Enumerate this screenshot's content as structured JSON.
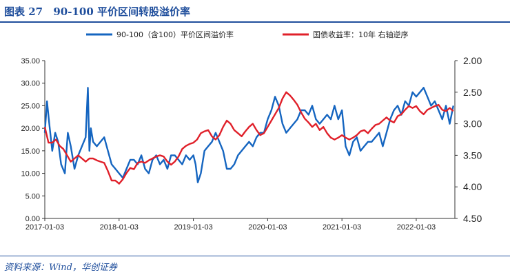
{
  "header": {
    "figure_label": "图表 27",
    "title": "90-100 平价区间转股溢价率"
  },
  "source": "资料来源：Wind，华创证券",
  "colors": {
    "premium": "#1565c0",
    "yield": "#e0202a",
    "accent": "#1f4e9c"
  },
  "chart_data": {
    "type": "line",
    "legend": [
      "90-100（含100）平价区间溢价率",
      "国债收益率：10年 右轴逆序"
    ],
    "x_tick_labels": [
      "2017-01-03",
      "2018-01-03",
      "2019-01-03",
      "2020-01-03",
      "2021-01-03",
      "2022-01-03"
    ],
    "left_axis": {
      "ylim": [
        0,
        35
      ],
      "ticks": [
        "0.00",
        "5.00",
        "10.00",
        "15.00",
        "20.00",
        "25.00",
        "30.00",
        "35.00"
      ]
    },
    "right_axis": {
      "ylim": [
        2.0,
        4.5
      ],
      "inverted": true,
      "ticks": [
        "2.00",
        "2.50",
        "3.00",
        "3.50",
        "4.00",
        "4.50"
      ]
    },
    "x_range": [
      2017.0,
      2022.52
    ],
    "series": [
      {
        "name": "90-100（含100）平价区间溢价率",
        "axis": "left",
        "x": [
          2017.0,
          2017.03,
          2017.06,
          2017.1,
          2017.14,
          2017.18,
          2017.22,
          2017.27,
          2017.31,
          2017.35,
          2017.4,
          2017.45,
          2017.5,
          2017.55,
          2017.58,
          2017.6,
          2017.62,
          2017.65,
          2017.7,
          2017.75,
          2017.8,
          2017.85,
          2017.9,
          2017.95,
          2018.0,
          2018.05,
          2018.1,
          2018.15,
          2018.2,
          2018.25,
          2018.3,
          2018.35,
          2018.4,
          2018.45,
          2018.5,
          2018.55,
          2018.6,
          2018.65,
          2018.7,
          2018.75,
          2018.8,
          2018.85,
          2018.9,
          2018.95,
          2019.0,
          2019.03,
          2019.06,
          2019.1,
          2019.15,
          2019.2,
          2019.25,
          2019.3,
          2019.35,
          2019.4,
          2019.45,
          2019.5,
          2019.55,
          2019.6,
          2019.65,
          2019.7,
          2019.75,
          2019.8,
          2019.85,
          2019.9,
          2019.95,
          2020.0,
          2020.05,
          2020.1,
          2020.15,
          2020.2,
          2020.25,
          2020.3,
          2020.35,
          2020.4,
          2020.45,
          2020.5,
          2020.55,
          2020.6,
          2020.65,
          2020.7,
          2020.75,
          2020.8,
          2020.85,
          2020.9,
          2020.95,
          2021.0,
          2021.05,
          2021.1,
          2021.15,
          2021.2,
          2021.25,
          2021.3,
          2021.35,
          2021.4,
          2021.45,
          2021.5,
          2021.55,
          2021.6,
          2021.65,
          2021.7,
          2021.75,
          2021.8,
          2021.85,
          2021.9,
          2021.95,
          2022.0,
          2022.05,
          2022.1,
          2022.15,
          2022.2,
          2022.25,
          2022.3,
          2022.35,
          2022.4,
          2022.45,
          2022.5
        ],
        "values": [
          19,
          26,
          21,
          15,
          19,
          17,
          12,
          10,
          19,
          16,
          11,
          14,
          16,
          18,
          29,
          15,
          20,
          17,
          16,
          17,
          18,
          15,
          12,
          11,
          10,
          9,
          11,
          13,
          13,
          12,
          14,
          11,
          10,
          13,
          14,
          12,
          13,
          11,
          14,
          14,
          13,
          12,
          14,
          13,
          14,
          12,
          8,
          10,
          15,
          16,
          17,
          19,
          17,
          15,
          11,
          11,
          12,
          14,
          15,
          16,
          17,
          16,
          18,
          19,
          19,
          22,
          24,
          27,
          25,
          21,
          19,
          20,
          21,
          22,
          24,
          24,
          23,
          25,
          22,
          21,
          22,
          23,
          22,
          25,
          22,
          24,
          16,
          14,
          17,
          18,
          15,
          16,
          17,
          17,
          18,
          19,
          16,
          19,
          22,
          24,
          25,
          23,
          26,
          25,
          28,
          27,
          28,
          29,
          27,
          25,
          26,
          24,
          22,
          25,
          21,
          25
        ]
      },
      {
        "name": "国债收益率：10年 右轴逆序",
        "axis": "right",
        "x": [
          2017.0,
          2017.05,
          2017.1,
          2017.15,
          2017.2,
          2017.25,
          2017.3,
          2017.35,
          2017.4,
          2017.45,
          2017.5,
          2017.55,
          2017.6,
          2017.65,
          2017.7,
          2017.75,
          2017.8,
          2017.85,
          2017.9,
          2017.95,
          2018.0,
          2018.05,
          2018.1,
          2018.15,
          2018.2,
          2018.25,
          2018.3,
          2018.35,
          2018.4,
          2018.45,
          2018.5,
          2018.55,
          2018.6,
          2018.65,
          2018.7,
          2018.75,
          2018.8,
          2018.85,
          2018.9,
          2018.95,
          2019.0,
          2019.05,
          2019.1,
          2019.15,
          2019.2,
          2019.25,
          2019.3,
          2019.35,
          2019.4,
          2019.45,
          2019.5,
          2019.55,
          2019.6,
          2019.65,
          2019.7,
          2019.75,
          2019.8,
          2019.85,
          2019.9,
          2019.95,
          2020.0,
          2020.05,
          2020.1,
          2020.15,
          2020.2,
          2020.25,
          2020.3,
          2020.35,
          2020.4,
          2020.45,
          2020.5,
          2020.55,
          2020.6,
          2020.65,
          2020.7,
          2020.75,
          2020.8,
          2020.85,
          2020.9,
          2020.95,
          2021.0,
          2021.05,
          2021.1,
          2021.15,
          2021.2,
          2021.25,
          2021.3,
          2021.35,
          2021.4,
          2021.45,
          2021.5,
          2021.55,
          2021.6,
          2021.65,
          2021.7,
          2021.75,
          2021.8,
          2021.85,
          2021.9,
          2021.95,
          2022.0,
          2022.05,
          2022.1,
          2022.15,
          2022.2,
          2022.25,
          2022.3,
          2022.35,
          2022.4,
          2022.45,
          2022.5
        ],
        "values": [
          3.05,
          3.3,
          3.3,
          3.25,
          3.35,
          3.4,
          3.5,
          3.6,
          3.55,
          3.5,
          3.55,
          3.6,
          3.55,
          3.55,
          3.58,
          3.6,
          3.62,
          3.75,
          3.9,
          3.9,
          3.95,
          3.88,
          3.78,
          3.7,
          3.72,
          3.62,
          3.6,
          3.62,
          3.58,
          3.55,
          3.52,
          3.5,
          3.52,
          3.6,
          3.65,
          3.6,
          3.52,
          3.4,
          3.35,
          3.32,
          3.3,
          3.25,
          3.15,
          3.12,
          3.1,
          3.2,
          3.25,
          3.18,
          3.05,
          2.95,
          3.0,
          3.1,
          3.15,
          3.2,
          3.12,
          3.05,
          3.0,
          3.1,
          3.18,
          3.15,
          3.05,
          2.95,
          2.85,
          2.75,
          2.6,
          2.5,
          2.55,
          2.62,
          2.7,
          2.82,
          2.92,
          2.98,
          3.05,
          3.0,
          3.1,
          3.05,
          3.15,
          3.22,
          3.25,
          3.22,
          3.18,
          3.22,
          3.25,
          3.22,
          3.18,
          3.12,
          3.1,
          3.15,
          3.08,
          3.02,
          3.0,
          2.95,
          2.9,
          2.95,
          2.98,
          2.88,
          2.85,
          2.78,
          2.72,
          2.75,
          2.72,
          2.8,
          2.85,
          2.78,
          2.75,
          2.72,
          2.7,
          2.78,
          2.8,
          2.75,
          2.8
        ]
      }
    ]
  }
}
